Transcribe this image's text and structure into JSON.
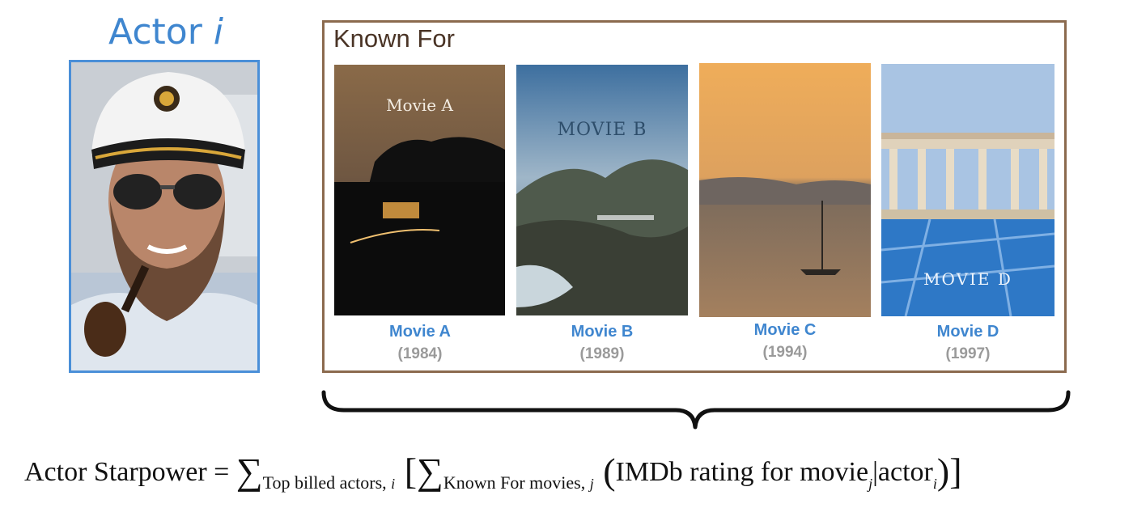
{
  "actor": {
    "title_text": "Actor ",
    "title_var": "i"
  },
  "known_for": {
    "label": "Known For",
    "movies": [
      {
        "title": "Movie A",
        "year": "(1984)",
        "poster_text": "Movie A"
      },
      {
        "title": "Movie B",
        "year": "(1989)",
        "poster_text": "MOVIE B"
      },
      {
        "title": "Movie C",
        "year": "(1994)",
        "poster_text": ""
      },
      {
        "title": "Movie D",
        "year": "(1997)",
        "poster_text": "MOVIE D"
      }
    ]
  },
  "formula": {
    "lhs": "Actor Starpower = ",
    "sum1_symbol": "∑",
    "sum1_sub": "Top billed actors, ",
    "sum1_sub_var": "i",
    "bracket_open": " [",
    "sum2_symbol": "∑",
    "sum2_sub": "Known For movies, ",
    "sum2_sub_var": "j",
    "paren_open": " (",
    "body": "IMDb rating for movie",
    "body_sub": "j",
    "bar": "|actor",
    "bar_sub": "i",
    "paren_close": ")",
    "bracket_close": "]"
  },
  "colors": {
    "accent_blue": "#3f86cf",
    "frame_brown": "#8b6a4e",
    "year_gray": "#9a9a9a"
  }
}
